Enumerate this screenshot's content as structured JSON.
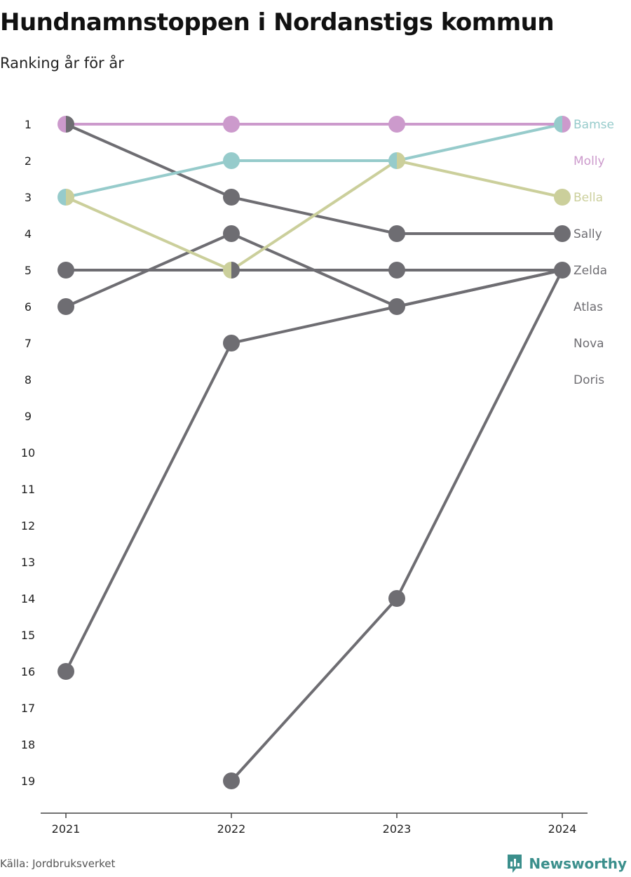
{
  "header": {
    "title": "Hundnamnstoppen i Nordanstigs kommun",
    "subtitle": "Ranking år för år"
  },
  "footer": {
    "source": "Källa: Jordbruksverket",
    "brand": "Newsworthy",
    "brand_icon": "newsworthy-logo-icon"
  },
  "colors": {
    "Bamse": "#96cbcb",
    "Molly": "#cc9acc",
    "Bella": "#cbcf9b",
    "gray": "#6e6d72",
    "axis": "#444444"
  },
  "chart_data": {
    "type": "line",
    "x": [
      "2021",
      "2022",
      "2023",
      "2024"
    ],
    "y_ticks": [
      "1",
      "2",
      "3",
      "4",
      "5",
      "6",
      "7",
      "8",
      "9",
      "10",
      "11",
      "12",
      "13",
      "14",
      "15",
      "16",
      "17",
      "18",
      "19"
    ],
    "y_reversed": true,
    "ylim": [
      1,
      19
    ],
    "series": [
      {
        "name": "Bamse",
        "values": [
          3,
          2,
          2,
          1
        ]
      },
      {
        "name": "Molly",
        "values": [
          1,
          1,
          1,
          1
        ]
      },
      {
        "name": "Bella",
        "values": [
          3,
          5,
          2,
          3
        ]
      },
      {
        "name": "Sally",
        "values": [
          1,
          3,
          4,
          4
        ]
      },
      {
        "name": "Zelda",
        "values": [
          5,
          5,
          5,
          5
        ]
      },
      {
        "name": "Atlas",
        "values": [
          6,
          4,
          6,
          5
        ]
      },
      {
        "name": "Nova",
        "values": [
          16,
          7,
          6,
          5
        ]
      },
      {
        "name": "Doris",
        "values": [
          null,
          19,
          14,
          5
        ]
      }
    ],
    "legend": "right, labels at end of lines"
  }
}
